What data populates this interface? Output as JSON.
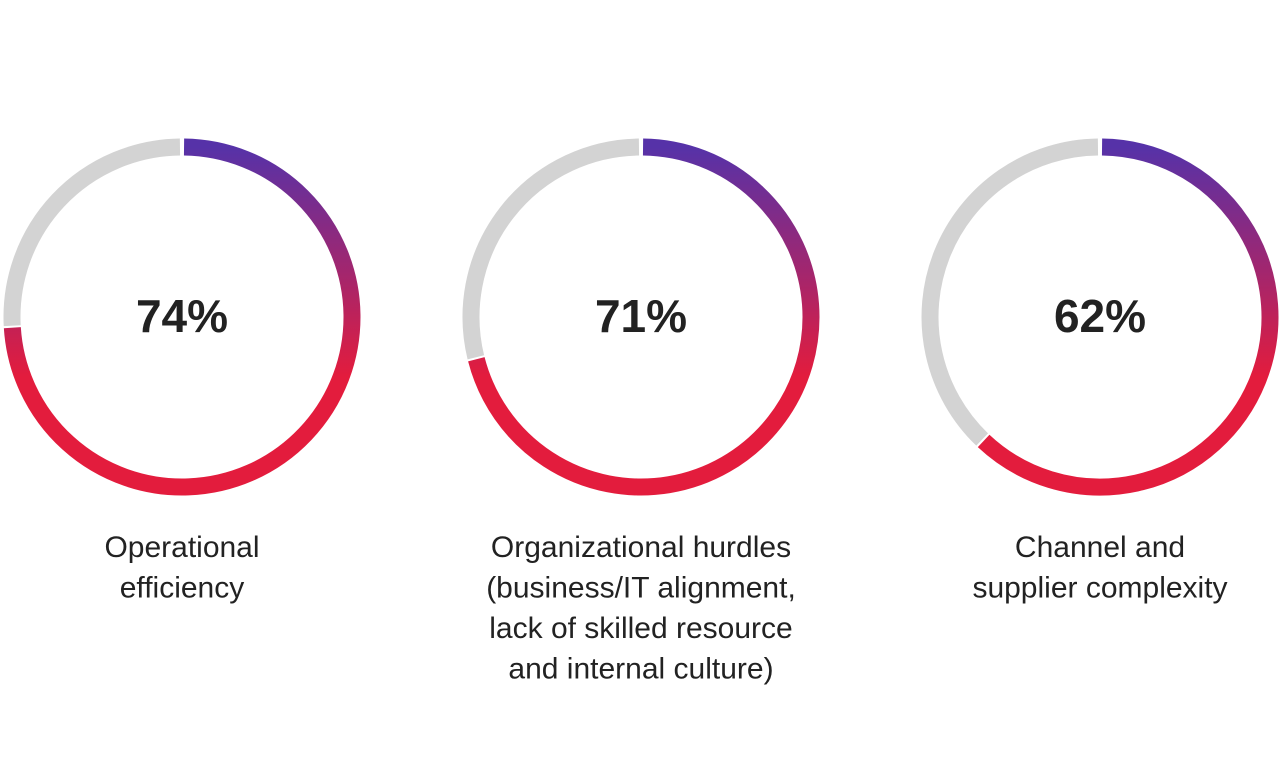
{
  "chart_data": [
    {
      "type": "donut",
      "values": [
        74
      ],
      "value_labels": [
        "74%"
      ],
      "caption": [
        "Operational",
        "efficiency"
      ],
      "ylim": [
        0,
        100
      ],
      "color_start": "#5632a8",
      "color_end": "#e31c3d",
      "track_color": "#d3d3d3"
    },
    {
      "type": "donut",
      "values": [
        71
      ],
      "value_labels": [
        "71%"
      ],
      "caption": [
        "Organizational hurdles",
        "(business/IT alignment,",
        "lack of skilled resource",
        "and internal culture)"
      ],
      "ylim": [
        0,
        100
      ],
      "color_start": "#5632a8",
      "color_end": "#e31c3d",
      "track_color": "#d3d3d3"
    },
    {
      "type": "donut",
      "values": [
        62
      ],
      "value_labels": [
        "62%"
      ],
      "caption": [
        "Channel and",
        "supplier complexity"
      ],
      "ylim": [
        0,
        100
      ],
      "color_start": "#5632a8",
      "color_end": "#e31c3d",
      "track_color": "#d3d3d3"
    }
  ]
}
